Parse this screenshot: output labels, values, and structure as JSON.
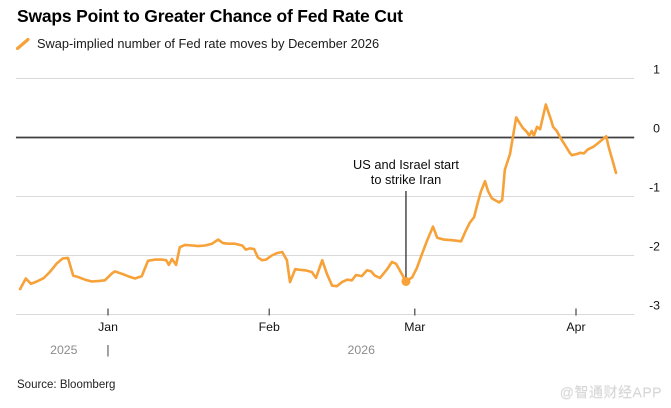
{
  "title": "Swaps Point to Greater Chance of Fed Rate Cut",
  "legend": {
    "label": "Swap-implied number of Fed rate moves by December 2026",
    "marker_color": "#F7A139"
  },
  "annotation": {
    "line1": "US and Israel start",
    "line2": "to strike Iran"
  },
  "source": "Source: Bloomberg",
  "watermark": "@智通财经APP",
  "colors": {
    "line": "#F7A139",
    "grid": "#d9d9d9",
    "zero_line": "#3f3f3f",
    "axis_text": "#111111",
    "year_text": "#8c8c8c",
    "tick_mark": "#444444",
    "annotation_line": "#2e2e2e"
  },
  "chart_data": {
    "type": "line",
    "title": "Swaps Point to Greater Chance of Fed Rate Cut",
    "series_name": "Swap-implied number of Fed rate moves by December 2026",
    "x_unit": "days from Jan 1 2026 (negative = Dec 2025)",
    "xlim": [
      -17.7,
      101.2
    ],
    "ylim": [
      -3,
      1
    ],
    "grid": true,
    "zero_line": true,
    "legend_position": "top-left",
    "x_ticks": [
      {
        "day": 0,
        "label": "Jan"
      },
      {
        "day": 31,
        "label": "Feb"
      },
      {
        "day": 59,
        "label": "Mar"
      },
      {
        "day": 90,
        "label": "Apr"
      }
    ],
    "year_labels": [
      {
        "day": -8.5,
        "label": "2025"
      },
      {
        "day": 48.7,
        "label": "2026"
      }
    ],
    "year_divider_day": 0,
    "y_ticks": [
      1,
      0,
      -1,
      -2,
      -3
    ],
    "points": [
      [
        -16.9,
        -2.57
      ],
      [
        -15.8,
        -2.39
      ],
      [
        -14.8,
        -2.48
      ],
      [
        -13.7,
        -2.44
      ],
      [
        -12.3,
        -2.38
      ],
      [
        -11.2,
        -2.28
      ],
      [
        -9.8,
        -2.13
      ],
      [
        -8.7,
        -2.05
      ],
      [
        -7.7,
        -2.04
      ],
      [
        -6.7,
        -2.34
      ],
      [
        -5.6,
        -2.37
      ],
      [
        -4.4,
        -2.41
      ],
      [
        -3.1,
        -2.44
      ],
      [
        -1.7,
        -2.43
      ],
      [
        -0.6,
        -2.42
      ],
      [
        0.8,
        -2.3
      ],
      [
        1.3,
        -2.27
      ],
      [
        2.7,
        -2.31
      ],
      [
        3.8,
        -2.35
      ],
      [
        5.2,
        -2.39
      ],
      [
        6.5,
        -2.35
      ],
      [
        7.7,
        -2.09
      ],
      [
        9.0,
        -2.07
      ],
      [
        10.4,
        -2.07
      ],
      [
        11.2,
        -2.08
      ],
      [
        11.7,
        -2.16
      ],
      [
        12.3,
        -2.06
      ],
      [
        13.1,
        -2.16
      ],
      [
        13.8,
        -1.86
      ],
      [
        14.8,
        -1.82
      ],
      [
        16.2,
        -1.83
      ],
      [
        17.3,
        -1.84
      ],
      [
        18.7,
        -1.83
      ],
      [
        20.0,
        -1.8
      ],
      [
        21.2,
        -1.73
      ],
      [
        22.1,
        -1.79
      ],
      [
        23.1,
        -1.8
      ],
      [
        24.4,
        -1.8
      ],
      [
        25.8,
        -1.83
      ],
      [
        26.5,
        -1.9
      ],
      [
        27.3,
        -1.88
      ],
      [
        28.1,
        -1.89
      ],
      [
        28.8,
        -2.03
      ],
      [
        29.6,
        -2.08
      ],
      [
        30.4,
        -2.07
      ],
      [
        31.5,
        -2.0
      ],
      [
        32.5,
        -1.96
      ],
      [
        33.5,
        -1.94
      ],
      [
        34.4,
        -2.08
      ],
      [
        35.0,
        -2.45
      ],
      [
        36.0,
        -2.23
      ],
      [
        36.7,
        -2.24
      ],
      [
        37.9,
        -2.25
      ],
      [
        39.2,
        -2.28
      ],
      [
        40.0,
        -2.38
      ],
      [
        41.2,
        -2.08
      ],
      [
        42.1,
        -2.31
      ],
      [
        43.1,
        -2.51
      ],
      [
        44.0,
        -2.52
      ],
      [
        45.0,
        -2.45
      ],
      [
        46.0,
        -2.41
      ],
      [
        46.9,
        -2.42
      ],
      [
        47.7,
        -2.33
      ],
      [
        48.8,
        -2.35
      ],
      [
        49.8,
        -2.25
      ],
      [
        50.6,
        -2.27
      ],
      [
        51.3,
        -2.34
      ],
      [
        52.3,
        -2.38
      ],
      [
        53.7,
        -2.23
      ],
      [
        54.6,
        -2.11
      ],
      [
        55.4,
        -2.14
      ],
      [
        57.3,
        -2.44
      ],
      [
        58.5,
        -2.37
      ],
      [
        59.4,
        -2.21
      ],
      [
        60.2,
        -2.02
      ],
      [
        61.3,
        -1.76
      ],
      [
        62.5,
        -1.51
      ],
      [
        63.3,
        -1.7
      ],
      [
        64.6,
        -1.73
      ],
      [
        66.2,
        -1.74
      ],
      [
        67.9,
        -1.76
      ],
      [
        68.8,
        -1.58
      ],
      [
        69.6,
        -1.44
      ],
      [
        70.4,
        -1.35
      ],
      [
        71.0,
        -1.14
      ],
      [
        71.7,
        -0.92
      ],
      [
        72.5,
        -0.74
      ],
      [
        73.1,
        -0.91
      ],
      [
        73.8,
        -1.03
      ],
      [
        74.6,
        -1.07
      ],
      [
        75.2,
        -1.1
      ],
      [
        75.8,
        -1.06
      ],
      [
        76.3,
        -0.55
      ],
      [
        77.3,
        -0.28
      ],
      [
        78.5,
        0.34
      ],
      [
        79.2,
        0.24
      ],
      [
        79.8,
        0.16
      ],
      [
        80.6,
        0.09
      ],
      [
        81.0,
        0.03
      ],
      [
        81.5,
        0.11
      ],
      [
        81.9,
        0.03
      ],
      [
        82.5,
        0.18
      ],
      [
        83.1,
        0.14
      ],
      [
        84.2,
        0.56
      ],
      [
        85.2,
        0.3
      ],
      [
        85.6,
        0.18
      ],
      [
        86.3,
        0.11
      ],
      [
        86.9,
        0.01
      ],
      [
        87.9,
        -0.13
      ],
      [
        88.8,
        -0.26
      ],
      [
        89.2,
        -0.3
      ],
      [
        90.2,
        -0.28
      ],
      [
        90.8,
        -0.26
      ],
      [
        91.5,
        -0.27
      ],
      [
        92.3,
        -0.2
      ],
      [
        93.3,
        -0.16
      ],
      [
        94.2,
        -0.1
      ],
      [
        95.0,
        -0.04
      ],
      [
        95.8,
        0.02
      ],
      [
        96.3,
        -0.17
      ],
      [
        96.9,
        -0.35
      ],
      [
        97.7,
        -0.6
      ]
    ],
    "event_marker": {
      "day": 57.3,
      "value": -2.44,
      "label": "US and Israel start to strike Iran"
    }
  }
}
